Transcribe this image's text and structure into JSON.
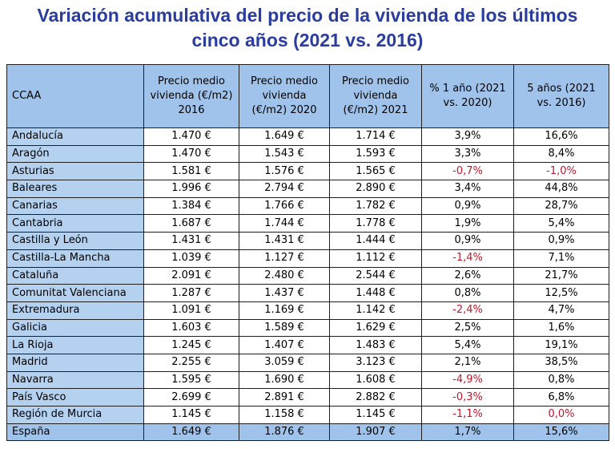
{
  "title": {
    "line1": "Variación acumulativa del precio de la vivienda de los últimos",
    "line2": "cinco años (2021 vs. 2016)"
  },
  "table": {
    "headers": [
      "CCAA",
      "Precio medio vivienda (€/m2) 2016",
      "Precio medio vivienda (€/m2) 2020",
      "Precio medio vivienda (€/m2) 2021",
      "% 1 año (2021 vs. 2020)",
      "5 años (2021 vs. 2016)"
    ],
    "rows": [
      [
        "Andalucía",
        "1.470 €",
        "1.649 €",
        "1.714 €",
        "3,9%",
        "16,6%"
      ],
      [
        "Aragón",
        "1.470 €",
        "1.543 €",
        "1.593 €",
        "3,3%",
        "8,4%"
      ],
      [
        "Asturias",
        "1.581 €",
        "1.576 €",
        "1.565 €",
        "-0,7%",
        "-1,0%"
      ],
      [
        "Baleares",
        "1.996 €",
        "2.794 €",
        "2.890 €",
        "3,4%",
        "44,8%"
      ],
      [
        "Canarias",
        "1.384 €",
        "1.766 €",
        "1.782 €",
        "0,9%",
        "28,7%"
      ],
      [
        "Cantabria",
        "1.687 €",
        "1.744 €",
        "1.778 €",
        "1,9%",
        "5,4%"
      ],
      [
        "Castilla y León",
        "1.431 €",
        "1.431 €",
        "1.444 €",
        "0,9%",
        "0,9%"
      ],
      [
        "Castilla-La Mancha",
        "1.039 €",
        "1.127 €",
        "1.112 €",
        "-1,4%",
        "7,1%"
      ],
      [
        "Cataluña",
        "2.091 €",
        "2.480 €",
        "2.544 €",
        "2,6%",
        "21,7%"
      ],
      [
        "Comunitat Valenciana",
        "1.287 €",
        "1.437 €",
        "1.448 €",
        "0,8%",
        "12,5%"
      ],
      [
        "Extremadura",
        "1.091 €",
        "1.169 €",
        "1.142 €",
        "-2,4%",
        "4,7%"
      ],
      [
        "Galicia",
        "1.603 €",
        "1.589 €",
        "1.629 €",
        "2,5%",
        "1,6%"
      ],
      [
        "La Rioja",
        "1.245 €",
        "1.407 €",
        "1.483 €",
        "5,4%",
        "19,1%"
      ],
      [
        "Madrid",
        "2.255 €",
        "3.059 €",
        "3.123 €",
        "2,1%",
        "38,5%"
      ],
      [
        "Navarra",
        "1.595 €",
        "1.690 €",
        "1.608 €",
        "-4,9%",
        "0,8%"
      ],
      [
        "País Vasco",
        "2.699 €",
        "2.891 €",
        "2.882 €",
        "-0,3%",
        "6,8%"
      ],
      [
        "Región de Murcia",
        "1.145 €",
        "1.158 €",
        "1.145 €",
        "-1,1%",
        "0,0%"
      ],
      [
        "España",
        "1.649 €",
        "1.876 €",
        "1.907 €",
        "1,7%",
        "15,6%"
      ]
    ],
    "red_cells": [
      [
        2,
        4
      ],
      [
        2,
        5
      ],
      [
        7,
        4
      ],
      [
        10,
        4
      ],
      [
        14,
        4
      ],
      [
        15,
        4
      ],
      [
        16,
        4
      ],
      [
        16,
        5
      ]
    ],
    "colors": {
      "title": "#2a3d9e",
      "header_bg": "#9fc3ea",
      "name_col_bg": "#b4d1f0",
      "negative": "#c0182b"
    }
  }
}
